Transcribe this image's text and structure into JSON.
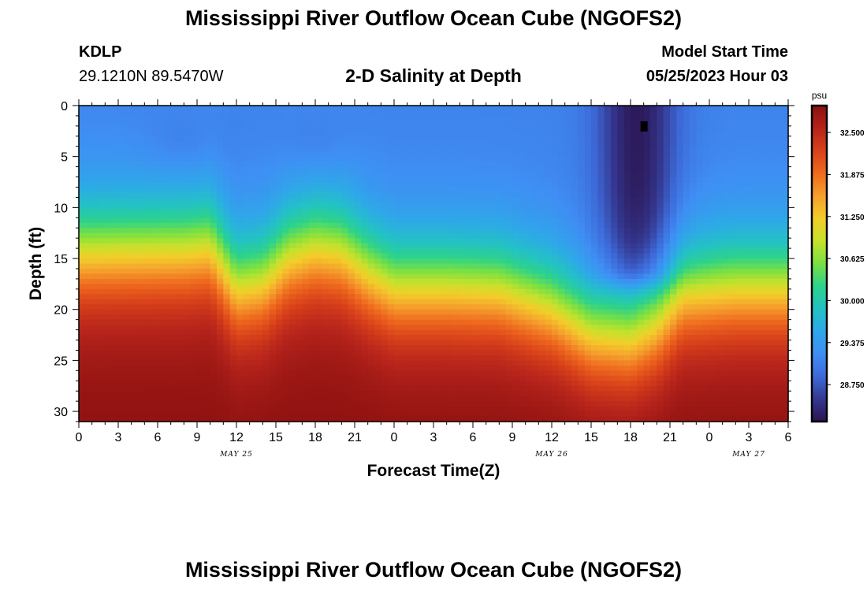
{
  "header": {
    "title": "Mississippi River Outflow Ocean Cube (NGOFS2)",
    "station": "KDLP",
    "coords": "29.1210N  89.5470W",
    "subtitle": "2-D Salinity at Depth",
    "model_start_label": "Model Start Time",
    "model_start_value": "05/25/2023 Hour 03"
  },
  "footer": {
    "title": "Mississippi River Outflow Ocean Cube (NGOFS2)"
  },
  "colors": {
    "colormap": [
      "#2b1450",
      "#34378f",
      "#3d6ad8",
      "#3f8ef4",
      "#2ea8e8",
      "#23c2c4",
      "#2dd28b",
      "#7ae043",
      "#c6e12c",
      "#f3cd2a",
      "#f5a02d",
      "#ef6a1e",
      "#d8411a",
      "#b5231b",
      "#8b1010"
    ]
  },
  "chart_data": {
    "type": "heatmap",
    "ylabel": "Depth (ft)",
    "xlabel": "Forecast Time(Z)",
    "ylim": [
      0,
      31
    ],
    "y_ticks": [
      0,
      5,
      10,
      15,
      20,
      25,
      30
    ],
    "x_range_hours": [
      0,
      54
    ],
    "x_tick_labels": [
      "0",
      "3",
      "6",
      "9",
      "12",
      "15",
      "18",
      "21",
      "0",
      "3",
      "6",
      "9",
      "12",
      "15",
      "18",
      "21",
      "0",
      "3",
      "6"
    ],
    "date_labels": [
      {
        "text": "MAY 25",
        "hour": 12
      },
      {
        "text": "MAY 26",
        "hour": 36
      },
      {
        "text": "MAY 27",
        "hour": 51
      }
    ],
    "colorbar": {
      "unit": "psu",
      "min": 28.2,
      "max": 32.9,
      "ticks": [
        "32.500",
        "31.875",
        "31.250",
        "30.625",
        "30.000",
        "29.375",
        "28.750"
      ]
    },
    "marker": {
      "hour": 43,
      "depth": 2
    },
    "halocline_depth_ft": [
      {
        "hour": 0,
        "depth": 14
      },
      {
        "hour": 8,
        "depth": 13.8
      },
      {
        "hour": 10,
        "depth": 13.5
      },
      {
        "hour": 12,
        "depth": 17.5
      },
      {
        "hour": 14,
        "depth": 17
      },
      {
        "hour": 16,
        "depth": 14.5
      },
      {
        "hour": 18,
        "depth": 13.6
      },
      {
        "hour": 20,
        "depth": 14
      },
      {
        "hour": 22,
        "depth": 16
      },
      {
        "hour": 24,
        "depth": 17.5
      },
      {
        "hour": 28,
        "depth": 17.5
      },
      {
        "hour": 32,
        "depth": 17.7
      },
      {
        "hour": 36,
        "depth": 19.5
      },
      {
        "hour": 39,
        "depth": 22
      },
      {
        "hour": 42,
        "depth": 22.5
      },
      {
        "hour": 44,
        "depth": 21
      },
      {
        "hour": 46,
        "depth": 18
      },
      {
        "hour": 50,
        "depth": 17.5
      },
      {
        "hour": 54,
        "depth": 17.5
      }
    ]
  }
}
